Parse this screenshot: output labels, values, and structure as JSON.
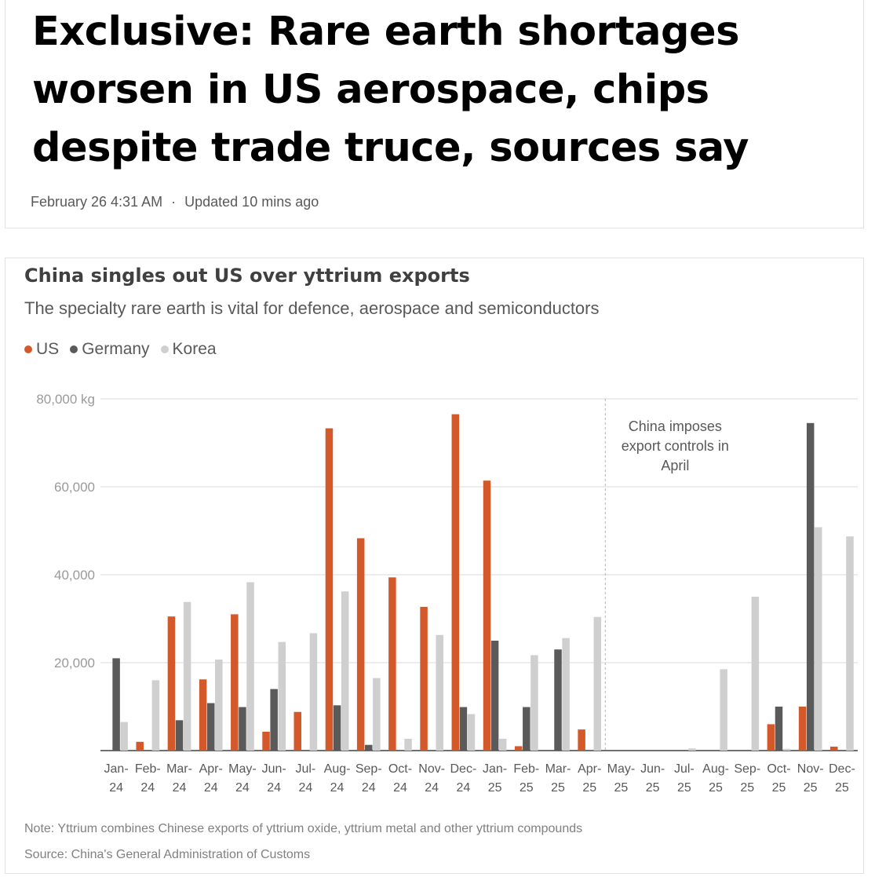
{
  "article": {
    "headline": "Exclusive: Rare earth shortages worsen in US aerospace, chips despite trade truce, sources say",
    "date": "February 26 4:31 AM",
    "separator": "·",
    "updated": "Updated 10 mins ago"
  },
  "colors": {
    "US": "#d4592a",
    "Germany": "#5a5a5a",
    "Korea": "#cfcfcf",
    "grid": "#d9d9d9",
    "axis": "#404040"
  },
  "chart_data": {
    "type": "bar",
    "title": "China singles out US over yttrium exports",
    "subtitle": "The specialty rare earth is vital for defence, aerospace and semiconductors",
    "legend": [
      "US",
      "Germany",
      "Korea"
    ],
    "legend_position": "top-left",
    "ylabel": "",
    "ylim": [
      0,
      80000
    ],
    "ytick_labels": [
      "80,000 kg",
      "60,000",
      "40,000",
      "20,000"
    ],
    "yticks": [
      80000,
      60000,
      40000,
      20000
    ],
    "categories": [
      [
        "Jan-",
        "24"
      ],
      [
        "Feb-",
        "24"
      ],
      [
        "Mar-",
        "24"
      ],
      [
        "Apr-",
        "24"
      ],
      [
        "May-",
        "24"
      ],
      [
        "Jun-",
        "24"
      ],
      [
        "Jul-",
        "24"
      ],
      [
        "Aug-",
        "24"
      ],
      [
        "Sep-",
        "24"
      ],
      [
        "Oct-",
        "24"
      ],
      [
        "Nov-",
        "24"
      ],
      [
        "Dec-",
        "24"
      ],
      [
        "Jan-",
        "25"
      ],
      [
        "Feb-",
        "25"
      ],
      [
        "Mar-",
        "25"
      ],
      [
        "Apr-",
        "25"
      ],
      [
        "May-",
        "25"
      ],
      [
        "Jun-",
        "25"
      ],
      [
        "Jul-",
        "25"
      ],
      [
        "Aug-",
        "25"
      ],
      [
        "Sep-",
        "25"
      ],
      [
        "Oct-",
        "25"
      ],
      [
        "Nov-",
        "25"
      ],
      [
        "Dec-",
        "25"
      ]
    ],
    "series": [
      {
        "name": "US",
        "values": [
          0,
          2000,
          30500,
          16200,
          31000,
          4300,
          8800,
          73300,
          48300,
          39400,
          32700,
          76500,
          61400,
          1000,
          0,
          4800,
          0,
          0,
          0,
          0,
          0,
          6000,
          10000,
          900
        ]
      },
      {
        "name": "Germany",
        "values": [
          21000,
          0,
          6900,
          10800,
          9900,
          14000,
          0,
          10300,
          1300,
          0,
          0,
          9900,
          25000,
          9900,
          23000,
          0,
          0,
          0,
          0,
          0,
          0,
          10000,
          74500,
          0
        ]
      },
      {
        "name": "Korea",
        "values": [
          6500,
          16000,
          33800,
          20700,
          38300,
          24700,
          26700,
          36200,
          16500,
          2700,
          26300,
          8300,
          2700,
          21700,
          25600,
          30400,
          0,
          0,
          500,
          18500,
          35000,
          400,
          50800,
          48700
        ]
      }
    ],
    "annotation": {
      "text_lines": [
        "China imposes",
        "export controls in",
        "April"
      ],
      "after_category": "Apr-25"
    },
    "grid": true,
    "note": "Note: Yttrium combines Chinese exports of yttrium oxide, yttrium metal and other yttrium compounds",
    "source": "Source: China's General Administration of Customs"
  }
}
